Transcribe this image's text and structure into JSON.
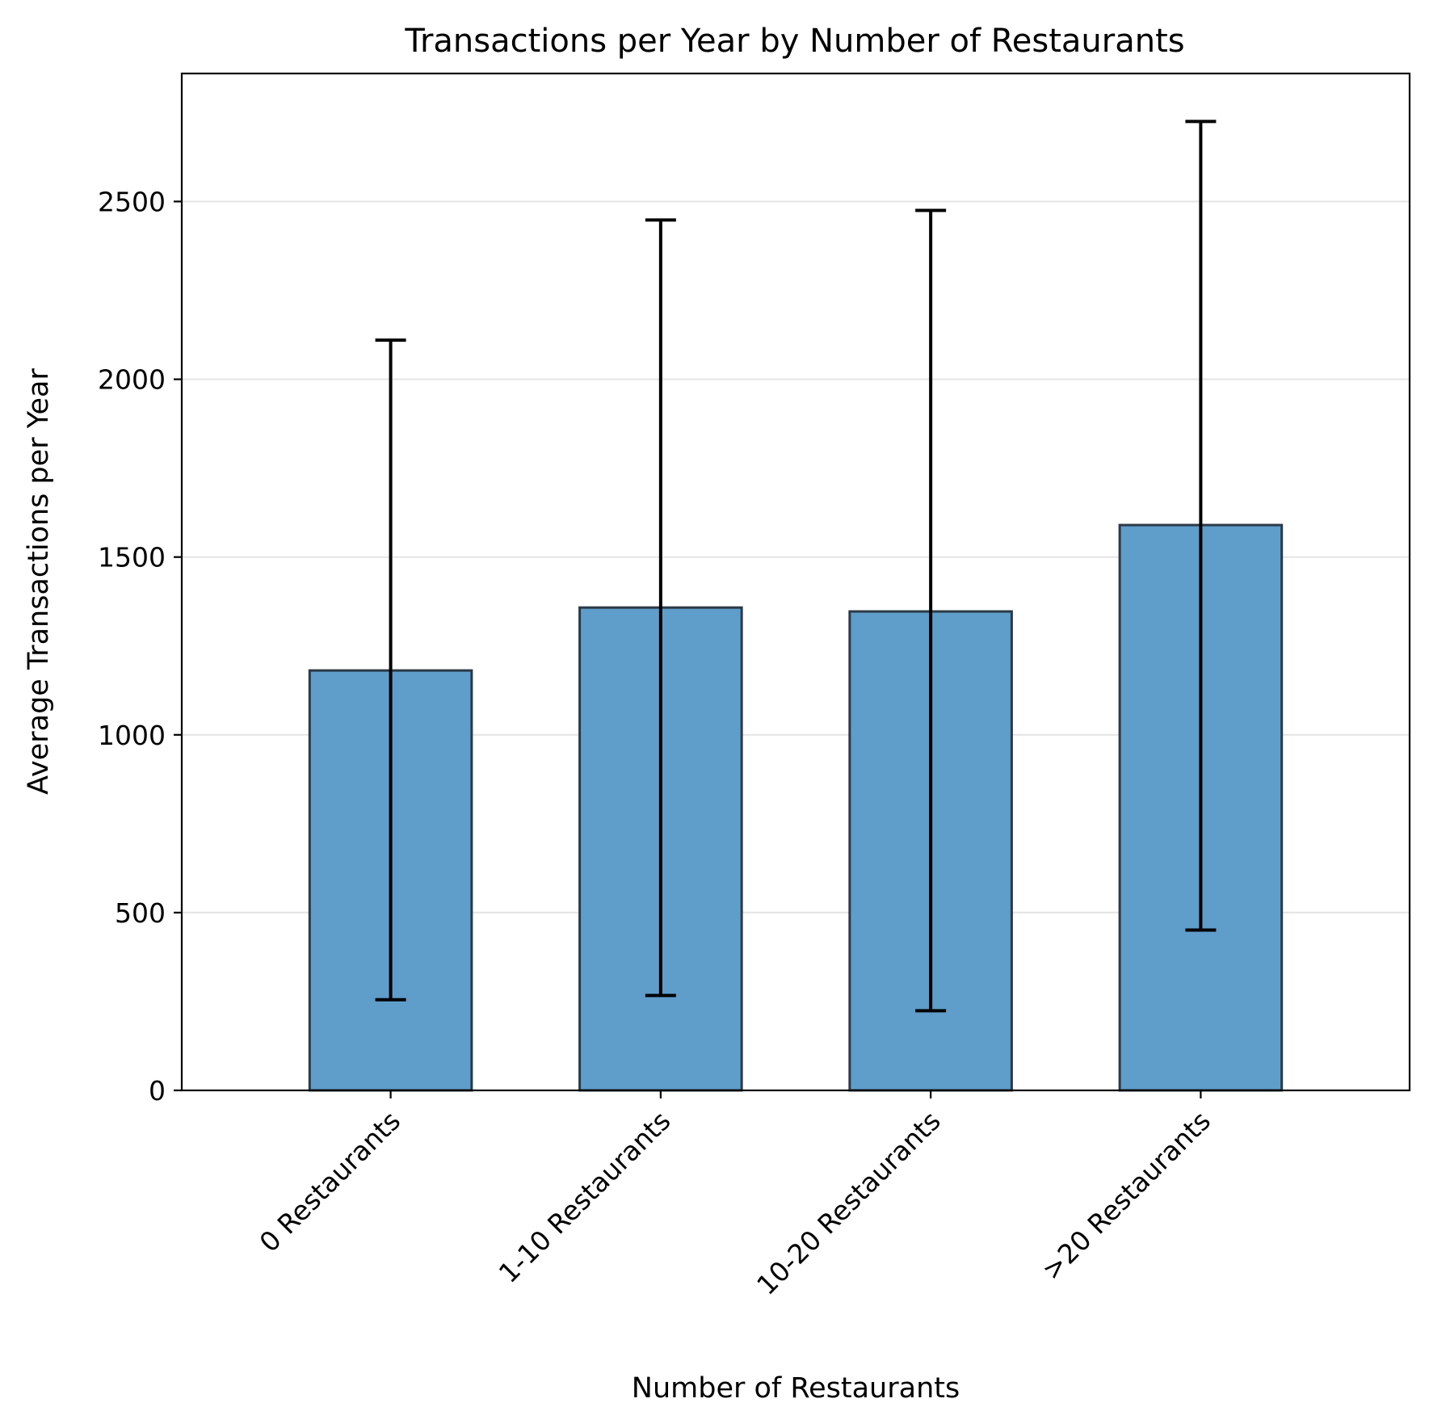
{
  "chart_data": {
    "type": "bar",
    "title": "Transactions per Year by Number of Restaurants",
    "xlabel": "Number of Restaurants",
    "ylabel": "Average Transactions per Year",
    "categories": [
      "0 Restaurants",
      "1-10 Restaurants",
      "10-20 Restaurants",
      ">20 Restaurants"
    ],
    "values": [
      1181,
      1358,
      1347,
      1590
    ],
    "error_low": [
      255,
      267,
      224,
      451
    ],
    "error_high": [
      2110,
      2448,
      2475,
      2725
    ],
    "ylim": [
      0,
      2860
    ],
    "yticks": [
      0,
      500,
      1000,
      1500,
      2000,
      2500
    ],
    "ytick_labels": [
      "0",
      "500",
      "1000",
      "1500",
      "2000",
      "2500"
    ],
    "grid": "y",
    "legend": "none",
    "bar_color": "#5f9dca",
    "bar_edge_color": "#2b3a46",
    "error_color": "#000000",
    "grid_color": "#e6e6e6"
  }
}
